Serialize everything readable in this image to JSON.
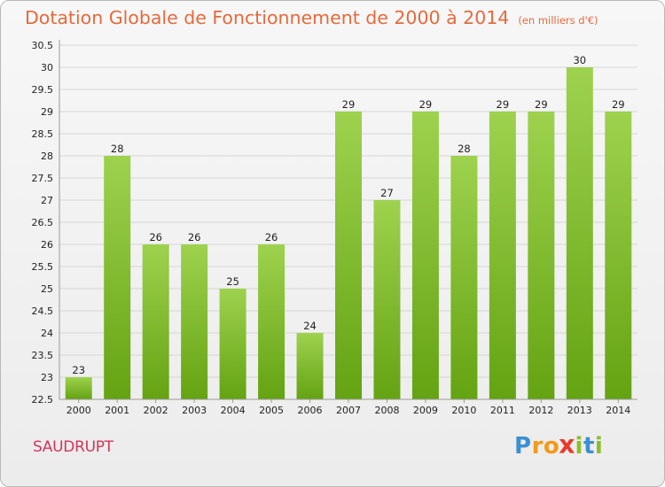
{
  "chart_data": {
    "type": "bar",
    "title": "Dotation Globale de Fonctionnement de 2000 à 2014",
    "subtitle": "(en milliers d'€)",
    "categories": [
      "2000",
      "2001",
      "2002",
      "2003",
      "2004",
      "2005",
      "2006",
      "2007",
      "2008",
      "2009",
      "2010",
      "2011",
      "2012",
      "2013",
      "2014"
    ],
    "values": [
      23,
      28,
      26,
      26,
      25,
      26,
      24,
      29,
      27,
      29,
      28,
      29,
      29,
      30,
      29
    ],
    "y_ticks": [
      "22.5",
      "23",
      "23.5",
      "24",
      "24.5",
      "25",
      "25.5",
      "26",
      "26.5",
      "27",
      "27.5",
      "28",
      "28.5",
      "29",
      "29.5",
      "30",
      "30.5"
    ],
    "ylim": [
      22.5,
      30.5
    ],
    "xlabel": "",
    "ylabel": "",
    "grid": true,
    "legend": "none",
    "colors": {
      "bar_top": "#9ed24e",
      "bar_bottom": "#64a312",
      "title": "#e56a3c",
      "grid": "#d6d6d6"
    }
  },
  "footer": {
    "place": "SAUDRUPT",
    "place_color": "#d1365b"
  },
  "logo": {
    "letters": [
      "P",
      "r",
      "o",
      "x",
      "i",
      "t",
      "i"
    ],
    "colors": [
      "#3d8fd1",
      "#f29a1b",
      "#f29a1b",
      "#e9392c",
      "#8cbf2a",
      "#3d8fd1",
      "#8cbf2a"
    ]
  }
}
